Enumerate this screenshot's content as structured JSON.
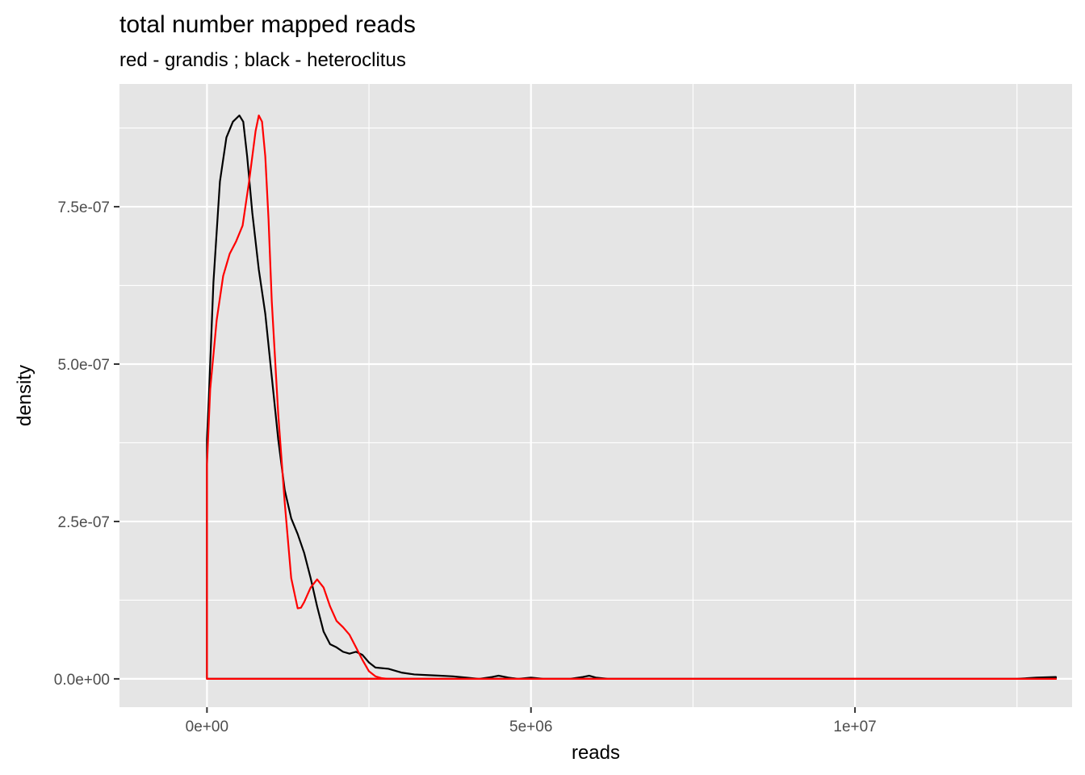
{
  "chart_data": {
    "type": "line",
    "title": "total number mapped reads",
    "subtitle": "red - grandis ; black - heteroclitus",
    "xlabel": "reads",
    "ylabel": "density",
    "xlim": [
      -1350000,
      13350000
    ],
    "ylim": [
      -4.5e-08,
      9.45e-07
    ],
    "x_ticks": [
      {
        "value": 0,
        "label": "0e+00"
      },
      {
        "value": 5000000,
        "label": "5e+06"
      },
      {
        "value": 10000000,
        "label": "1e+07"
      }
    ],
    "y_ticks": [
      {
        "value": 0,
        "label": "0.0e+00"
      },
      {
        "value": 2.5e-07,
        "label": "2.5e-07"
      },
      {
        "value": 5e-07,
        "label": "5.0e-07"
      },
      {
        "value": 7.5e-07,
        "label": "7.5e-07"
      }
    ],
    "grid": true,
    "background": "#e5e5e5",
    "grid_color": "#ffffff",
    "series": [
      {
        "color": "#000000",
        "x": [
          0,
          0,
          30000,
          100000,
          200000,
          300000,
          400000,
          500000,
          560000,
          620000,
          700000,
          800000,
          900000,
          1000000,
          1100000,
          1200000,
          1300000,
          1400000,
          1500000,
          1600000,
          1700000,
          1800000,
          1900000,
          2000000,
          2100000,
          2200000,
          2300000,
          2400000,
          2500000,
          2600000,
          2800000,
          3000000,
          3200000,
          3400000,
          3600000,
          3800000,
          4000000,
          4200000,
          4400000,
          4500000,
          4650000,
          4800000,
          5000000,
          5200000,
          5400000,
          5600000,
          5800000,
          5900000,
          6000000,
          6200000,
          7000000,
          9000000,
          11000000,
          12500000,
          12800000,
          13100000,
          13100000,
          0
        ],
        "values": [
          0,
          3.8e-07,
          4.5e-07,
          6.3e-07,
          7.9e-07,
          8.6e-07,
          8.85e-07,
          8.95e-07,
          8.85e-07,
          8.3e-07,
          7.4e-07,
          6.5e-07,
          5.8e-07,
          4.8e-07,
          3.8e-07,
          3e-07,
          2.55e-07,
          2.3e-07,
          2e-07,
          1.6e-07,
          1.15e-07,
          7.5e-08,
          5.5e-08,
          5e-08,
          4.3e-08,
          4e-08,
          4.3e-08,
          3.8e-08,
          2.6e-08,
          1.8e-08,
          1.6e-08,
          1e-08,
          7e-09,
          6e-09,
          5e-09,
          4e-09,
          2e-09,
          0,
          3e-09,
          5e-09,
          2e-09,
          0,
          2e-09,
          0,
          0,
          0,
          3e-09,
          5e-09,
          2e-09,
          0,
          0,
          0,
          0,
          0,
          2e-09,
          3e-09,
          0,
          0
        ]
      },
      {
        "color": "#ff0000",
        "x": [
          0,
          0,
          50000,
          150000,
          250000,
          350000,
          450000,
          550000,
          650000,
          750000,
          800000,
          850000,
          900000,
          950000,
          1000000,
          1100000,
          1200000,
          1300000,
          1400000,
          1450000,
          1500000,
          1600000,
          1700000,
          1800000,
          1900000,
          2000000,
          2100000,
          2200000,
          2300000,
          2400000,
          2500000,
          2600000,
          2700000,
          2800000,
          3000000,
          4000000,
          6000000,
          9000000,
          12000000,
          13100000,
          13100000,
          0
        ],
        "values": [
          0,
          3.4e-07,
          4.6e-07,
          5.7e-07,
          6.4e-07,
          6.75e-07,
          6.95e-07,
          7.2e-07,
          7.9e-07,
          8.7e-07,
          8.95e-07,
          8.85e-07,
          8.3e-07,
          7.3e-07,
          6e-07,
          4.2e-07,
          2.8e-07,
          1.6e-07,
          1.12e-07,
          1.13e-07,
          1.22e-07,
          1.45e-07,
          1.58e-07,
          1.45e-07,
          1.15e-07,
          9.2e-08,
          8.2e-08,
          7e-08,
          5e-08,
          3e-08,
          1.2e-08,
          4e-09,
          1e-09,
          0,
          0,
          0,
          0,
          0,
          0,
          0,
          0,
          0
        ]
      }
    ]
  }
}
